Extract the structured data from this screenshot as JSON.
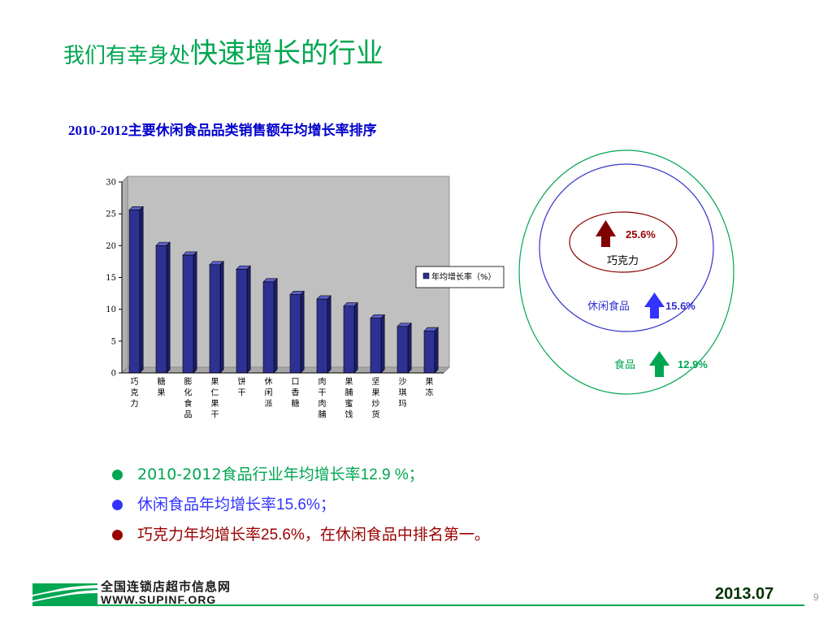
{
  "title": {
    "prefix": "我们有幸身处",
    "emphasis": "快速增长的行业"
  },
  "subtitle": "2010-2012主要休闲食品品类销售额年均增长率排序",
  "chart_data": {
    "type": "bar",
    "categories": [
      "巧克力",
      "糖果",
      "膨化食品",
      "果仁果干",
      "饼干",
      "休闲派",
      "口香糖",
      "肉干肉脯",
      "果脯蜜饯",
      "坚果炒货",
      "沙琪玛",
      "果冻"
    ],
    "series": [
      {
        "name": "年均增长率（%）",
        "values": [
          25.6,
          20,
          18.5,
          17,
          16.3,
          14.3,
          12.3,
          11.6,
          10.5,
          8.6,
          7.3,
          6.6
        ]
      }
    ],
    "ylim": [
      0,
      30
    ],
    "yticks": [
      0,
      5,
      10,
      15,
      20,
      25,
      30
    ],
    "legend_position": "right",
    "colors": {
      "bar": "#2e3192",
      "plot_bg": "#c0c0c0"
    },
    "grid": false
  },
  "rings": {
    "chocolate": {
      "label": "巧克力",
      "value": "25.6%",
      "arrow_color": "#800000",
      "ring_color": "#8b0000"
    },
    "snack": {
      "label": "休闲食品",
      "value": "15.6%",
      "arrow_color": "#3333ff",
      "ring_color": "#3333cc"
    },
    "food": {
      "label": "食品",
      "value": "12.9%",
      "arrow_color": "#00a651",
      "ring_color": "#00a651"
    }
  },
  "bullets": [
    {
      "text": "2010-2012食品行业年均增长率 ",
      "value": "12.9 %",
      "suffix": "；",
      "color": "#00a651"
    },
    {
      "text": "休闲食品年均增长率 ",
      "value": "15.6%",
      "suffix": "；",
      "color": "#3333ff"
    },
    {
      "text": "巧克力年均增长率 ",
      "value": "25.6%",
      "suffix": "，在休闲食品中排名第一。",
      "color": "#990000"
    }
  ],
  "footer": {
    "org_name": "全国连锁店超市信息网",
    "org_url": "WWW.SUPINF.ORG",
    "date": "2013.07",
    "page": "9"
  }
}
